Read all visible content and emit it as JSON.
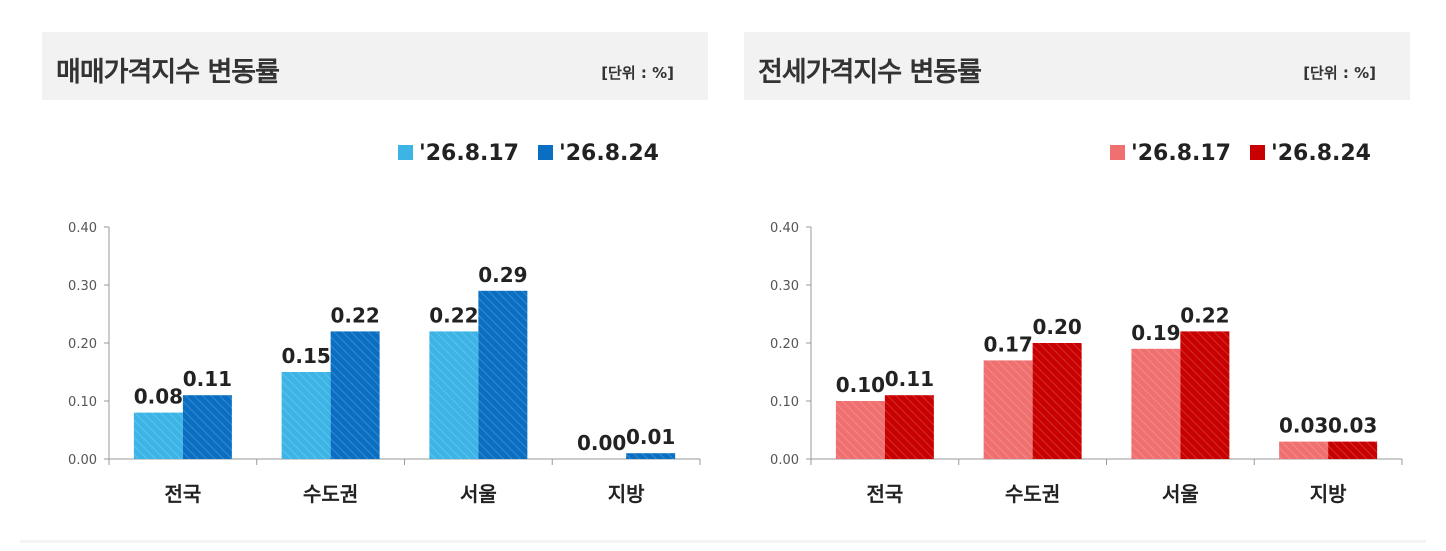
{
  "charts": [
    {
      "title": "매매가격지수 변동률",
      "unit": "[단위 : %]"
    },
    {
      "title": "전세가격지수 변동률",
      "unit": "[단위 : %]"
    }
  ],
  "chart_data": [
    {
      "type": "bar",
      "title": "매매가격지수 변동률",
      "unit": "[단위 : %]",
      "categories": [
        "전국",
        "수도권",
        "서울",
        "지방"
      ],
      "series": [
        {
          "name": "'26.8.17",
          "values": [
            0.08,
            0.15,
            0.22,
            0.0
          ],
          "color": "#3cb4e6"
        },
        {
          "name": "'26.8.24",
          "values": [
            0.11,
            0.22,
            0.29,
            0.01
          ],
          "color": "#0a6fc2"
        }
      ],
      "value_labels": [
        [
          "0.08",
          "0.15",
          "0.22",
          "0.00"
        ],
        [
          "0.11",
          "0.22",
          "0.29",
          "0.01"
        ]
      ],
      "yticks": [
        "0.00",
        "0.10",
        "0.20",
        "0.30",
        "0.40"
      ],
      "ylim": [
        0,
        0.4
      ],
      "grid": false,
      "legend": "top-right"
    },
    {
      "type": "bar",
      "title": "전세가격지수 변동률",
      "unit": "[단위 : %]",
      "categories": [
        "전국",
        "수도권",
        "서울",
        "지방"
      ],
      "series": [
        {
          "name": "'26.8.17",
          "values": [
            0.1,
            0.17,
            0.19,
            0.03
          ],
          "color": "#f07070"
        },
        {
          "name": "'26.8.24",
          "values": [
            0.11,
            0.2,
            0.22,
            0.03
          ],
          "color": "#c80000"
        }
      ],
      "value_labels": [
        [
          "0.10",
          "0.17",
          "0.19",
          "0.03"
        ],
        [
          "0.11",
          "0.20",
          "0.22",
          "0.03"
        ]
      ],
      "yticks": [
        "0.00",
        "0.10",
        "0.20",
        "0.30",
        "0.40"
      ],
      "ylim": [
        0,
        0.4
      ],
      "grid": false,
      "legend": "top-right"
    }
  ]
}
